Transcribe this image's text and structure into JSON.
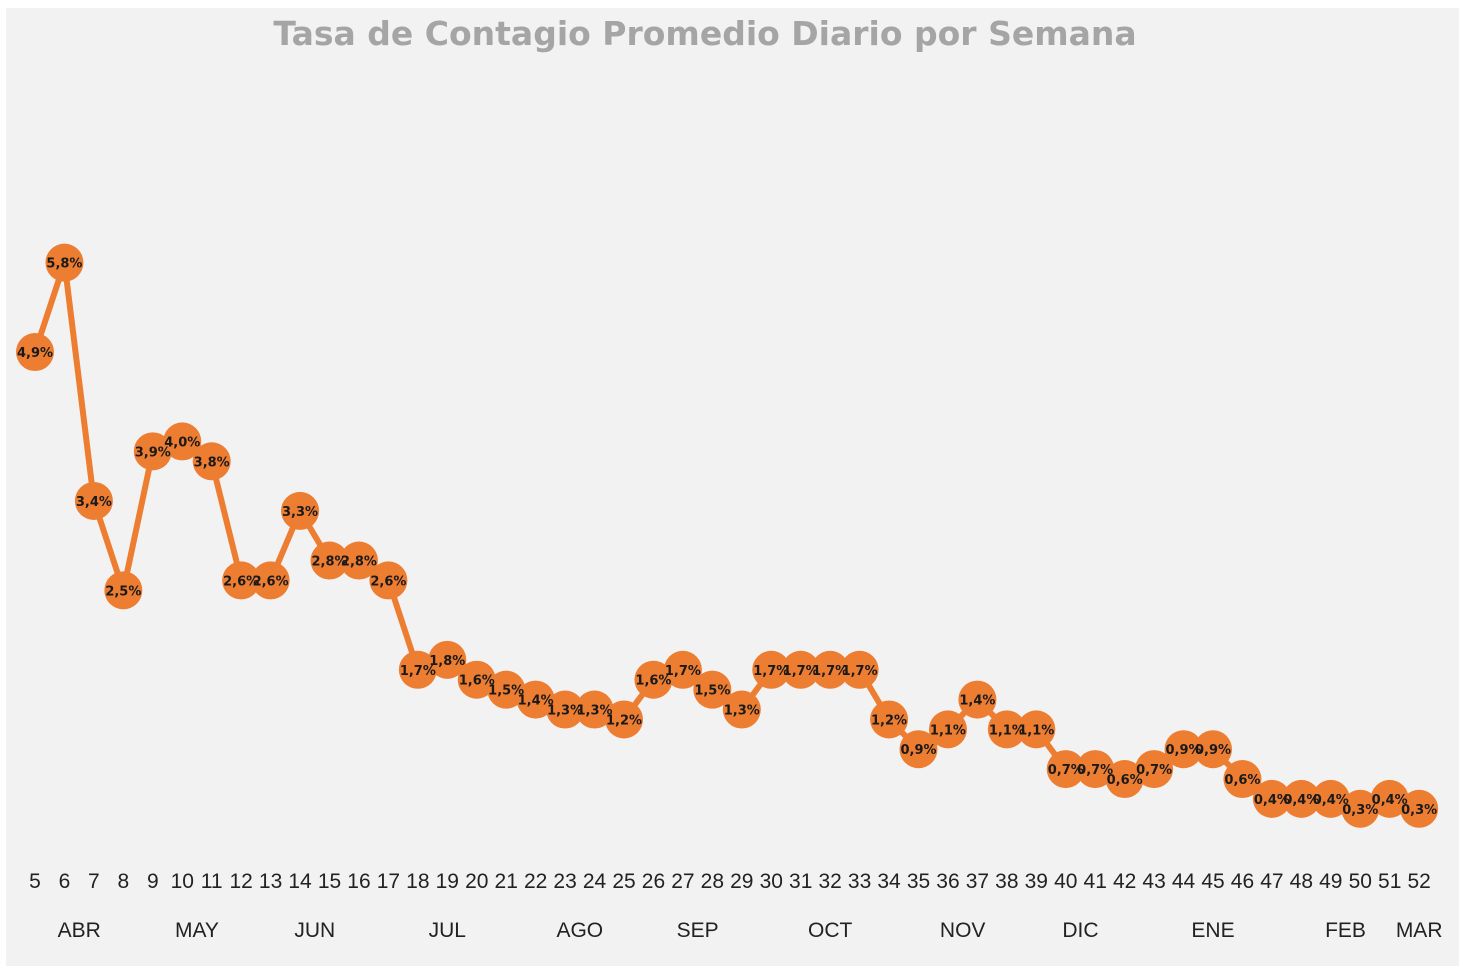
{
  "chart_data": {
    "type": "line",
    "title": "Tasa de Contagio Promedio Diario por Semana",
    "xlabel": "",
    "ylabel": "",
    "color": "#ed7d31",
    "background": "#f2f2f2",
    "grid": false,
    "legend": "none",
    "x": [
      "5",
      "6",
      "7",
      "8",
      "9",
      "10",
      "11",
      "12",
      "13",
      "14",
      "15",
      "16",
      "17",
      "18",
      "19",
      "20",
      "21",
      "22",
      "23",
      "24",
      "25",
      "26",
      "27",
      "28",
      "29",
      "30",
      "31",
      "32",
      "33",
      "34",
      "35",
      "36",
      "37",
      "38",
      "39",
      "40",
      "41",
      "42",
      "43",
      "44",
      "45",
      "46",
      "47",
      "48",
      "49",
      "50",
      "51",
      "52"
    ],
    "values": [
      4.9,
      5.8,
      3.4,
      2.5,
      3.9,
      4.0,
      3.8,
      2.6,
      2.6,
      3.3,
      2.8,
      2.8,
      2.6,
      1.7,
      1.8,
      1.6,
      1.5,
      1.4,
      1.3,
      1.3,
      1.2,
      1.6,
      1.7,
      1.5,
      1.3,
      1.7,
      1.7,
      1.7,
      1.7,
      1.2,
      0.9,
      1.1,
      1.4,
      1.1,
      1.1,
      0.7,
      0.7,
      0.6,
      0.7,
      0.9,
      0.9,
      0.6,
      0.4,
      0.4,
      0.4,
      0.3,
      0.4,
      0.3
    ],
    "data_labels": [
      "4,9%",
      "5,8%",
      "3,4%",
      "2,5%",
      "3,9%",
      "4,0%",
      "3,8%",
      "2,6%",
      "2,6%",
      "3,3%",
      "2,8%",
      "2,8%",
      "2,6%",
      "1,7%",
      "1,8%",
      "1,6%",
      "1,5%",
      "1,4%",
      "1,3%",
      "1,3%",
      "1,2%",
      "1,6%",
      "1,7%",
      "1,5%",
      "1,3%",
      "1,7%",
      "1,7%",
      "1,7%",
      "1,7%",
      "1,2%",
      "0,9%",
      "1,1%",
      "1,4%",
      "1,1%",
      "1,1%",
      "0,7%",
      "0,7%",
      "0,6%",
      "0,7%",
      "0,9%",
      "0,9%",
      "0,6%",
      "0,4%",
      "0,4%",
      "0,4%",
      "0,3%",
      "0,4%",
      "0,3%"
    ],
    "month_labels": [
      {
        "label": "ABR",
        "at": 6.5
      },
      {
        "label": "MAY",
        "at": 10.5
      },
      {
        "label": "JUN",
        "at": 14.5
      },
      {
        "label": "JUL",
        "at": 19
      },
      {
        "label": "AGO",
        "at": 23.5
      },
      {
        "label": "SEP",
        "at": 27.5
      },
      {
        "label": "OCT",
        "at": 32
      },
      {
        "label": "NOV",
        "at": 36.5
      },
      {
        "label": "DIC",
        "at": 40.5
      },
      {
        "label": "ENE",
        "at": 45
      },
      {
        "label": "FEB",
        "at": 49.5
      },
      {
        "label": "MAR",
        "at": 52
      }
    ]
  }
}
